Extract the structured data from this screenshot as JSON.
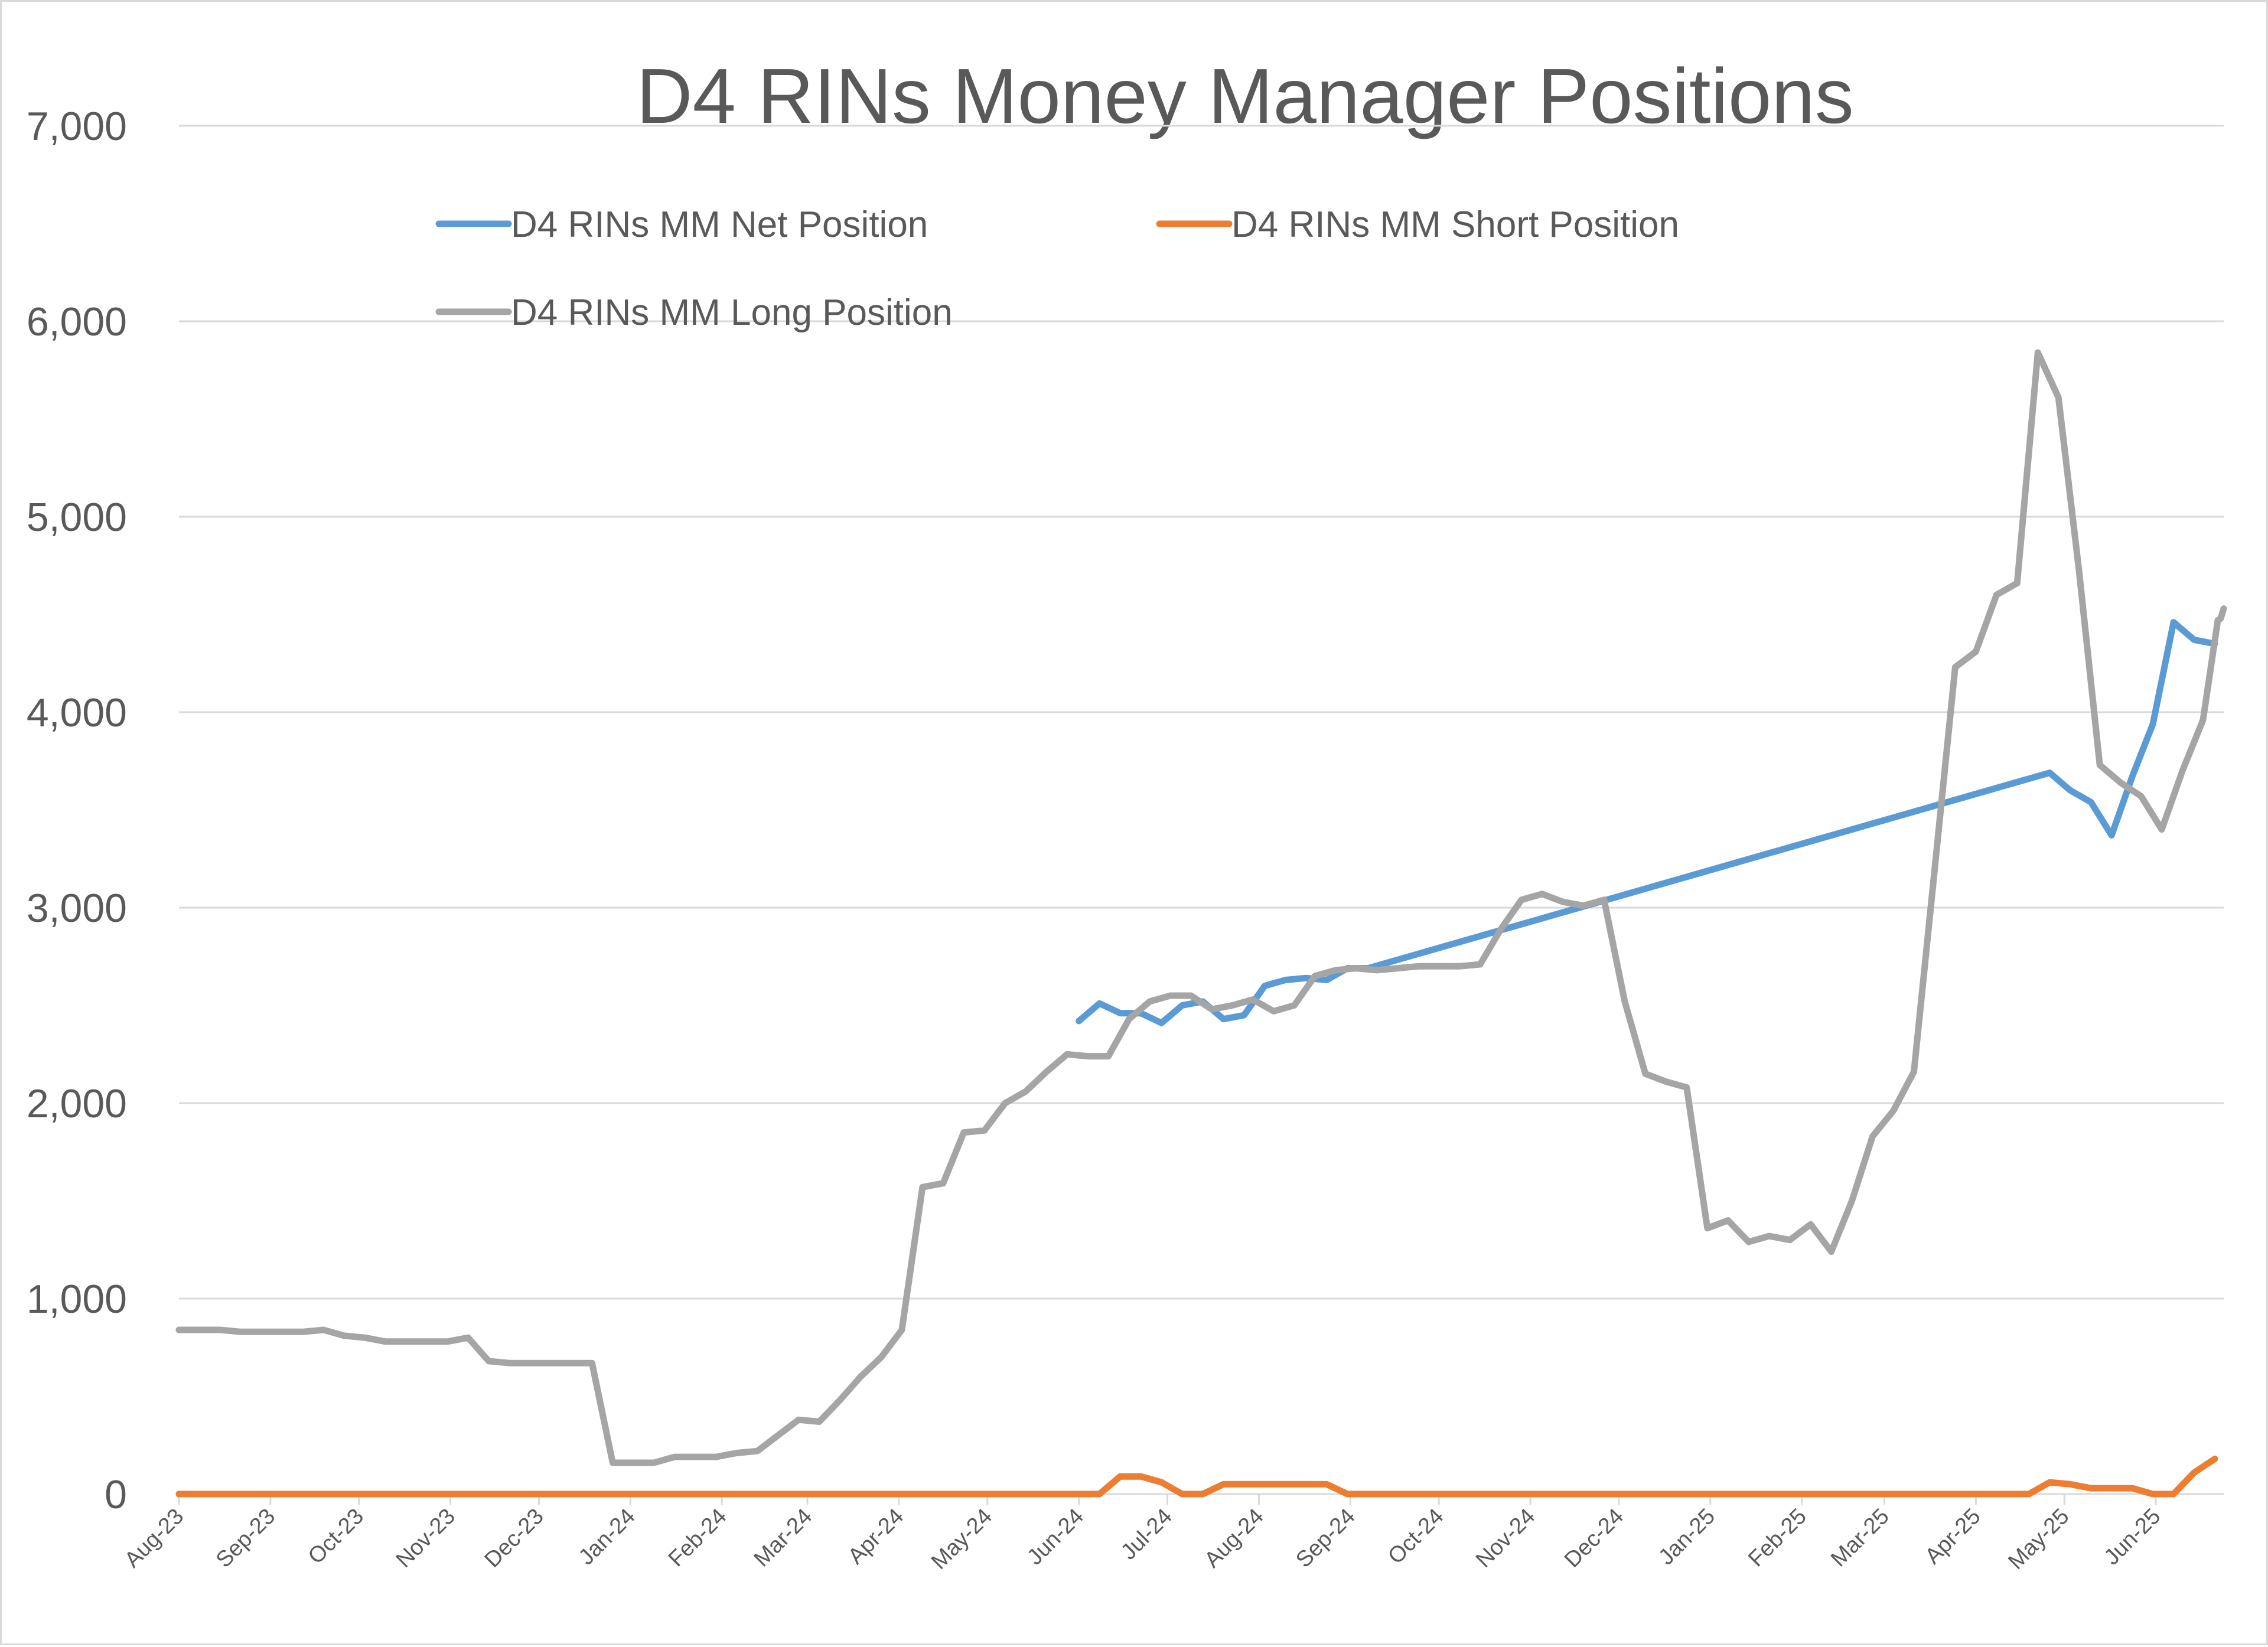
{
  "chart_data": {
    "type": "line",
    "title": "D4 RINs Money Manager Positions",
    "xlabel": "",
    "ylabel": "",
    "ylim": [
      0,
      7000
    ],
    "y_ticks": [
      0,
      1000,
      2000,
      3000,
      4000,
      5000,
      6000,
      7000
    ],
    "y_tick_labels": [
      "0",
      "1,000",
      "2,000",
      "3,000",
      "4,000",
      "5,000",
      "6,000",
      "7,000"
    ],
    "x_range": [
      "2023-08-01",
      "2025-06-24"
    ],
    "x_ticks": [
      "2023-08-01",
      "2023-09-01",
      "2023-10-01",
      "2023-11-01",
      "2023-12-01",
      "2024-01-01",
      "2024-02-01",
      "2024-03-01",
      "2024-04-01",
      "2024-05-01",
      "2024-06-01",
      "2024-07-01",
      "2024-08-01",
      "2024-09-01",
      "2024-10-01",
      "2024-11-01",
      "2024-12-01",
      "2025-01-01",
      "2025-02-01",
      "2025-03-01",
      "2025-04-01",
      "2025-05-01",
      "2025-06-01"
    ],
    "x_tick_labels": [
      "Aug-23",
      "Sep-23",
      "Oct-23",
      "Nov-23",
      "Dec-23",
      "Jan-24",
      "Feb-24",
      "Mar-24",
      "Apr-24",
      "May-24",
      "Jun-24",
      "Jul-24",
      "Aug-24",
      "Sep-24",
      "Oct-24",
      "Nov-24",
      "Dec-24",
      "Jan-25",
      "Feb-25",
      "Mar-25",
      "Apr-25",
      "May-25",
      "Jun-25"
    ],
    "grid": true,
    "legend_position": "top",
    "series": [
      {
        "name": "D4 RINs MM Net Position",
        "color": "#5b9bd5",
        "points": [
          [
            "2024-06-01",
            2420
          ],
          [
            "2024-06-08",
            2510
          ],
          [
            "2024-06-15",
            2460
          ],
          [
            "2024-06-22",
            2460
          ],
          [
            "2024-06-29",
            2410
          ],
          [
            "2024-07-06",
            2500
          ],
          [
            "2024-07-13",
            2520
          ],
          [
            "2024-07-20",
            2430
          ],
          [
            "2024-07-27",
            2450
          ],
          [
            "2024-08-03",
            2600
          ],
          [
            "2024-08-10",
            2630
          ],
          [
            "2024-08-17",
            2640
          ],
          [
            "2024-08-24",
            2630
          ],
          [
            "2024-08-31",
            2690
          ],
          [
            "2024-09-07",
            2690
          ],
          [
            "2025-04-26",
            3690
          ],
          [
            "2025-05-03",
            3600
          ],
          [
            "2025-05-10",
            3540
          ],
          [
            "2025-05-17",
            3370
          ],
          [
            "2025-05-24",
            3670
          ],
          [
            "2025-05-31",
            3940
          ],
          [
            "2025-06-07",
            4460
          ],
          [
            "2025-06-14",
            4370
          ],
          [
            "2025-06-21",
            4350
          ]
        ]
      },
      {
        "name": "D4 RINs MM Short Position",
        "color": "#ed7d31",
        "points": [
          [
            "2023-08-01",
            0
          ],
          [
            "2024-06-08",
            0
          ],
          [
            "2024-06-15",
            90
          ],
          [
            "2024-06-22",
            90
          ],
          [
            "2024-06-29",
            60
          ],
          [
            "2024-07-06",
            0
          ],
          [
            "2024-07-13",
            0
          ],
          [
            "2024-07-20",
            50
          ],
          [
            "2024-07-27",
            50
          ],
          [
            "2024-08-03",
            50
          ],
          [
            "2024-08-10",
            50
          ],
          [
            "2024-08-17",
            50
          ],
          [
            "2024-08-24",
            50
          ],
          [
            "2024-08-31",
            0
          ],
          [
            "2025-04-19",
            0
          ],
          [
            "2025-04-26",
            60
          ],
          [
            "2025-05-03",
            50
          ],
          [
            "2025-05-10",
            30
          ],
          [
            "2025-05-17",
            30
          ],
          [
            "2025-05-24",
            30
          ],
          [
            "2025-05-31",
            0
          ],
          [
            "2025-06-07",
            0
          ],
          [
            "2025-06-14",
            110
          ],
          [
            "2025-06-21",
            180
          ]
        ]
      },
      {
        "name": "D4 RINs MM Long Position",
        "color": "#a5a5a5",
        "points": [
          [
            "2023-08-01",
            840
          ],
          [
            "2023-08-08",
            840
          ],
          [
            "2023-08-15",
            840
          ],
          [
            "2023-08-22",
            830
          ],
          [
            "2023-08-29",
            830
          ],
          [
            "2023-09-05",
            830
          ],
          [
            "2023-09-12",
            830
          ],
          [
            "2023-09-19",
            840
          ],
          [
            "2023-09-26",
            810
          ],
          [
            "2023-10-03",
            800
          ],
          [
            "2023-10-10",
            780
          ],
          [
            "2023-10-17",
            780
          ],
          [
            "2023-10-24",
            780
          ],
          [
            "2023-10-31",
            780
          ],
          [
            "2023-11-07",
            800
          ],
          [
            "2023-11-14",
            680
          ],
          [
            "2023-11-21",
            670
          ],
          [
            "2023-11-28",
            670
          ],
          [
            "2023-12-05",
            670
          ],
          [
            "2023-12-12",
            670
          ],
          [
            "2023-12-19",
            670
          ],
          [
            "2023-12-26",
            160
          ],
          [
            "2024-01-02",
            160
          ],
          [
            "2024-01-09",
            160
          ],
          [
            "2024-01-16",
            190
          ],
          [
            "2024-01-23",
            190
          ],
          [
            "2024-01-30",
            190
          ],
          [
            "2024-02-06",
            210
          ],
          [
            "2024-02-13",
            220
          ],
          [
            "2024-02-20",
            300
          ],
          [
            "2024-02-27",
            380
          ],
          [
            "2024-03-05",
            370
          ],
          [
            "2024-03-12",
            480
          ],
          [
            "2024-03-19",
            600
          ],
          [
            "2024-03-26",
            700
          ],
          [
            "2024-04-02",
            840
          ],
          [
            "2024-04-09",
            1570
          ],
          [
            "2024-04-16",
            1590
          ],
          [
            "2024-04-23",
            1850
          ],
          [
            "2024-04-30",
            1860
          ],
          [
            "2024-05-07",
            2000
          ],
          [
            "2024-05-14",
            2060
          ],
          [
            "2024-05-21",
            2160
          ],
          [
            "2024-05-28",
            2250
          ],
          [
            "2024-06-04",
            2240
          ],
          [
            "2024-06-11",
            2240
          ],
          [
            "2024-06-18",
            2430
          ],
          [
            "2024-06-25",
            2520
          ],
          [
            "2024-07-02",
            2550
          ],
          [
            "2024-07-09",
            2550
          ],
          [
            "2024-07-16",
            2480
          ],
          [
            "2024-07-23",
            2500
          ],
          [
            "2024-07-30",
            2530
          ],
          [
            "2024-08-06",
            2470
          ],
          [
            "2024-08-13",
            2500
          ],
          [
            "2024-08-20",
            2650
          ],
          [
            "2024-08-27",
            2680
          ],
          [
            "2024-09-03",
            2690
          ],
          [
            "2024-09-10",
            2680
          ],
          [
            "2024-09-17",
            2690
          ],
          [
            "2024-09-24",
            2700
          ],
          [
            "2024-10-01",
            2700
          ],
          [
            "2024-10-08",
            2700
          ],
          [
            "2024-10-15",
            2710
          ],
          [
            "2024-10-22",
            2890
          ],
          [
            "2024-10-29",
            3040
          ],
          [
            "2024-11-05",
            3070
          ],
          [
            "2024-11-12",
            3030
          ],
          [
            "2024-11-19",
            3010
          ],
          [
            "2024-11-26",
            3040
          ],
          [
            "2024-12-03",
            2520
          ],
          [
            "2024-12-10",
            2150
          ],
          [
            "2024-12-17",
            2110
          ],
          [
            "2024-12-24",
            2080
          ],
          [
            "2024-12-31",
            1360
          ],
          [
            "2025-01-07",
            1400
          ],
          [
            "2025-01-14",
            1290
          ],
          [
            "2025-01-21",
            1320
          ],
          [
            "2025-01-28",
            1300
          ],
          [
            "2025-02-04",
            1380
          ],
          [
            "2025-02-11",
            1240
          ],
          [
            "2025-02-18",
            1500
          ],
          [
            "2025-02-25",
            1830
          ],
          [
            "2025-03-04",
            1960
          ],
          [
            "2025-03-11",
            2160
          ],
          [
            "2025-03-18",
            3190
          ],
          [
            "2025-03-25",
            4230
          ],
          [
            "2025-04-01",
            4310
          ],
          [
            "2025-04-08",
            4600
          ],
          [
            "2025-04-15",
            4660
          ],
          [
            "2025-04-22",
            5840
          ],
          [
            "2025-04-29",
            5610
          ],
          [
            "2025-05-06",
            4720
          ],
          [
            "2025-05-13",
            3730
          ],
          [
            "2025-05-20",
            3640
          ],
          [
            "2025-05-27",
            3570
          ],
          [
            "2025-06-03",
            3400
          ],
          [
            "2025-06-10",
            3700
          ],
          [
            "2025-06-17",
            3960
          ],
          [
            "2025-06-22",
            4470
          ],
          [
            "2025-06-23",
            4480
          ],
          [
            "2025-06-24",
            4530
          ]
        ]
      }
    ]
  }
}
